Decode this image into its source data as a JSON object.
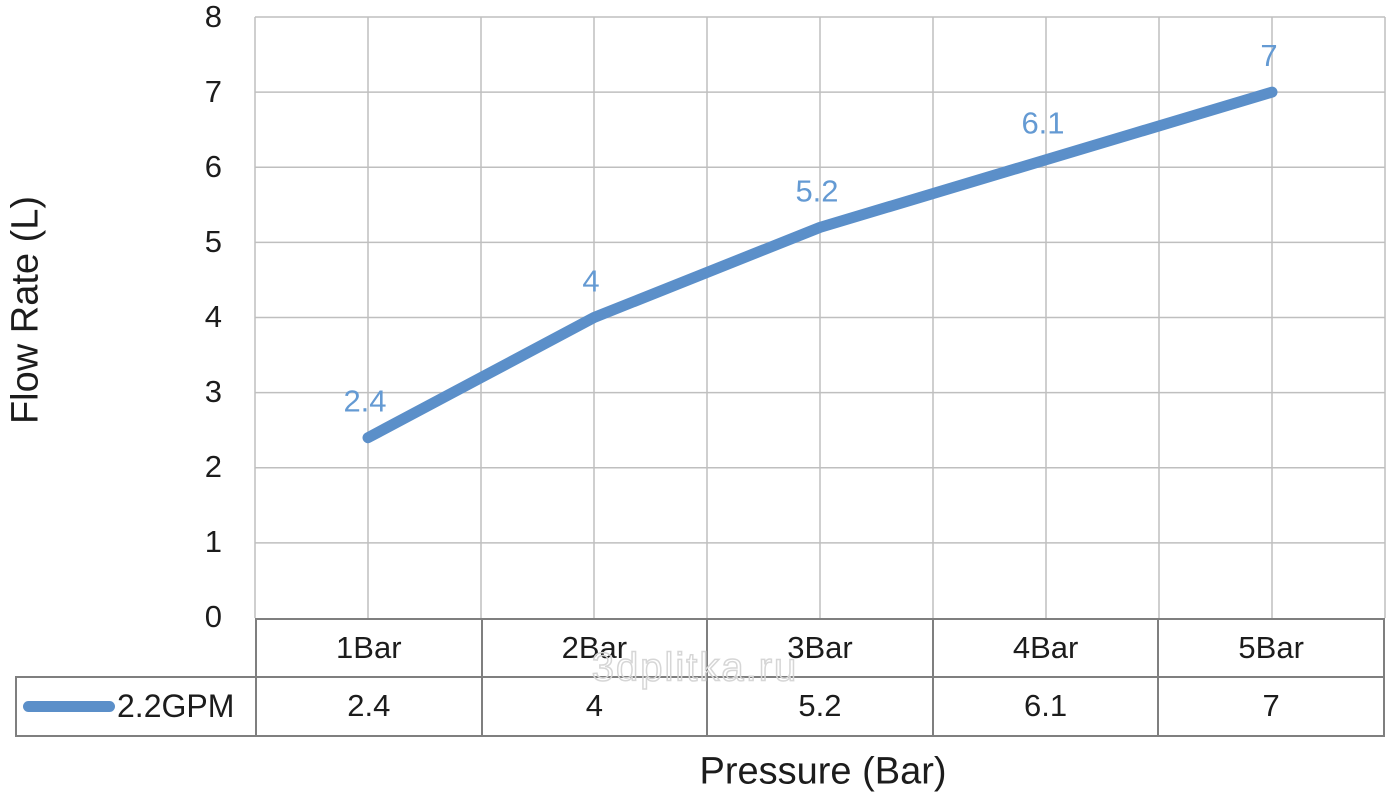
{
  "watermark": "3dplitka.ru",
  "chart_data": {
    "type": "line",
    "title": "",
    "xlabel": "Pressure (Bar)",
    "ylabel": "Flow Rate (L)",
    "categories": [
      "1Bar",
      "2Bar",
      "3Bar",
      "4Bar",
      "5Bar"
    ],
    "series": [
      {
        "name": "2.2GPM",
        "values": [
          2.4,
          4,
          5.2,
          6.1,
          7
        ],
        "color": "#5b8fc9"
      }
    ],
    "data_labels": [
      "2.4",
      "4",
      "5.2",
      "6.1",
      "7"
    ],
    "ylim": [
      0,
      8
    ],
    "yticks": [
      "8",
      "7",
      "6",
      "5",
      "4",
      "3",
      "2",
      "1",
      "0"
    ],
    "grid": true,
    "legend_position": "bottom-table-left",
    "colors": {
      "line": "#5b8fc9",
      "data_label": "#649ad3",
      "gridline": "#bfbfbf",
      "table_border": "#7f7f7f",
      "text": "#1c1c1c",
      "watermark_stroke": "#d6d6d6"
    }
  }
}
